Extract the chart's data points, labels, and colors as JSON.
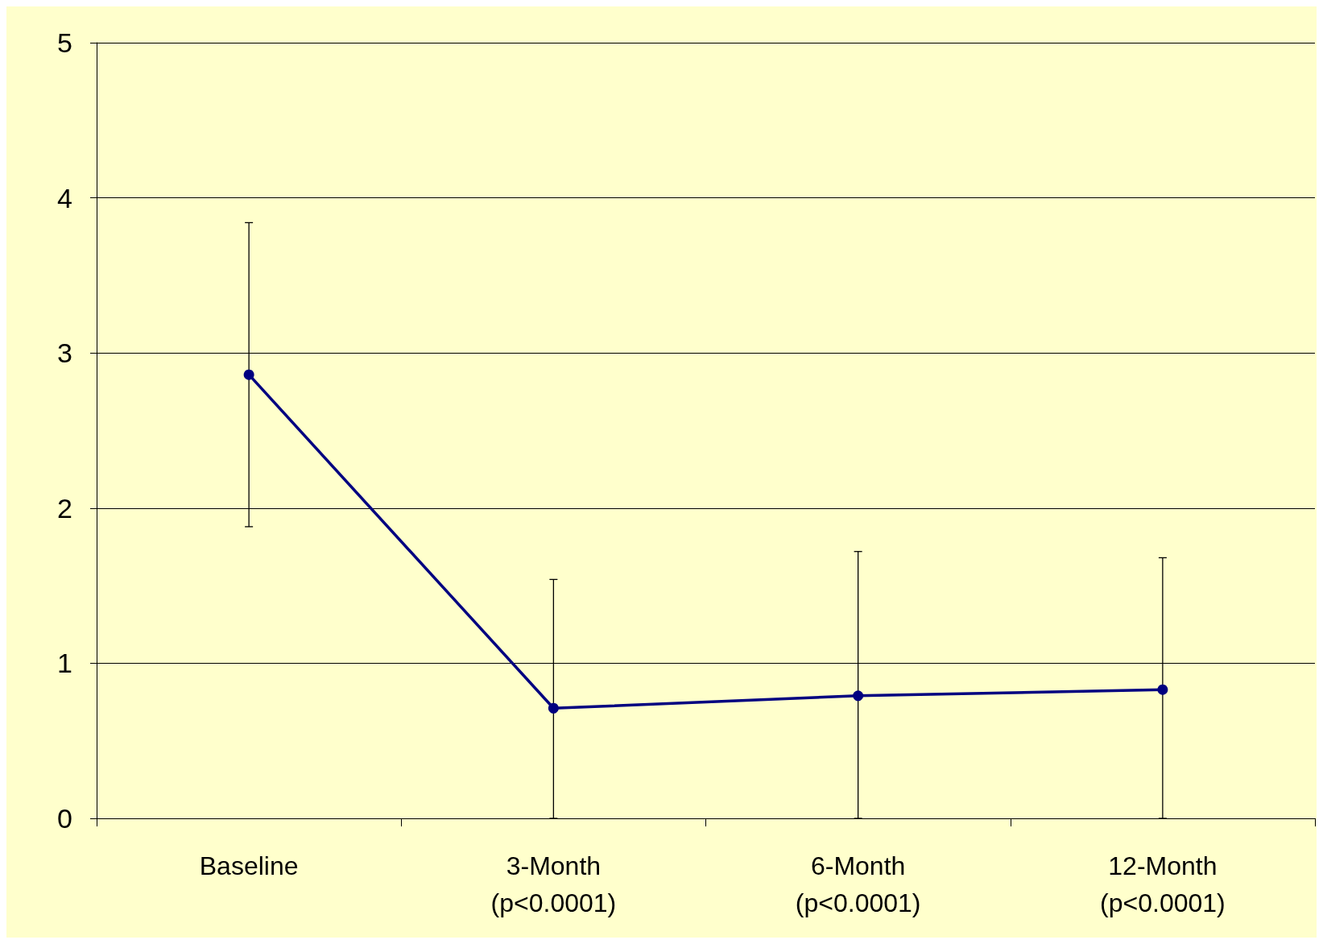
{
  "chart_data": {
    "type": "line",
    "categories": [
      "Baseline",
      "3-Month\n(p<0.0001)",
      "6-Month\n(p<0.0001)",
      "12-Month\n(p<0.0001)"
    ],
    "series": [
      {
        "color": "#000080",
        "values": [
          2.86,
          0.71,
          0.79,
          0.83
        ],
        "errors": [
          [
            1.88,
            3.84
          ],
          [
            0,
            1.54
          ],
          [
            0,
            1.72
          ],
          [
            0,
            1.68
          ]
        ]
      }
    ],
    "ylim": [
      0,
      5
    ],
    "yticks": [
      0,
      1,
      2,
      3,
      4,
      5
    ],
    "grid": "y",
    "marker": "circle",
    "line_style": "solid"
  }
}
